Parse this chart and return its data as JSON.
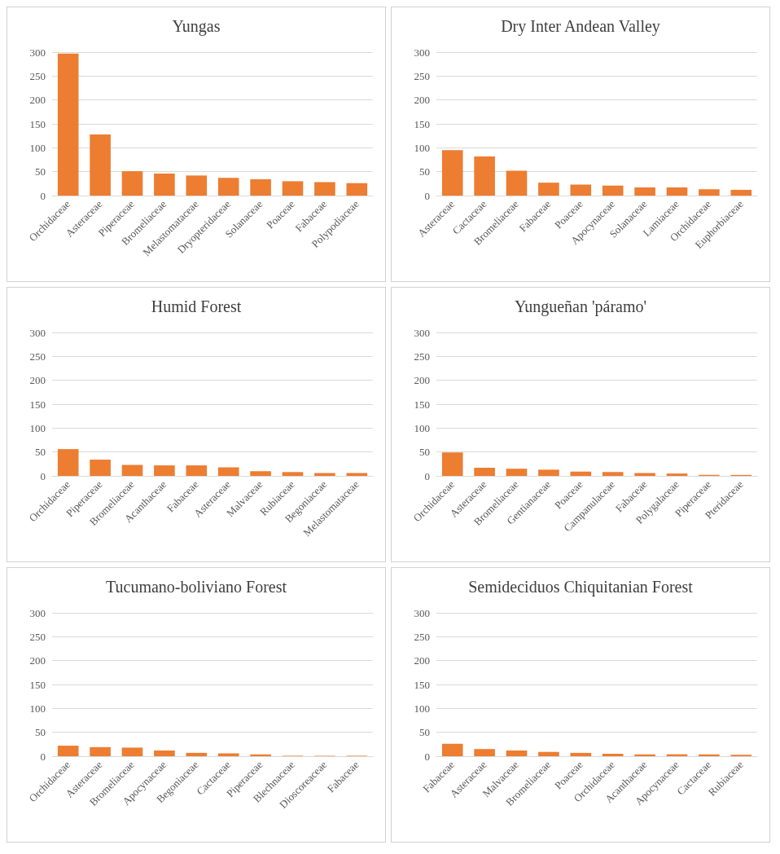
{
  "chart_data": [
    {
      "type": "bar",
      "title": "Yungas",
      "categories": [
        "Orchidaceae",
        "Asteraceae",
        "Piperaceae",
        "Bromeliaceae",
        "Melastomataceae",
        "Dryopteridaceae",
        "Solanaceae",
        "Poaceae",
        "Fabaceae",
        "Polypodiaceae"
      ],
      "values": [
        297,
        128,
        51,
        46,
        42,
        37,
        34,
        30,
        28,
        26
      ],
      "color": "#ed7d31",
      "ylim": [
        0,
        300
      ],
      "yticks": [
        0,
        50,
        100,
        150,
        200,
        250,
        300
      ],
      "grid": "y"
    },
    {
      "type": "bar",
      "title": "Dry Inter Andean Valley",
      "categories": [
        "Asteraceae",
        "Cactaceae",
        "Bromeliaceae",
        "Fabaceae",
        "Poaceae",
        "Apocynaceae",
        "Solanaceae",
        "Lamiaceae",
        "Orchidaceae",
        "Euphorbiaceae"
      ],
      "values": [
        95,
        82,
        52,
        27,
        23,
        21,
        17,
        17,
        13,
        12
      ],
      "color": "#ed7d31",
      "ylim": [
        0,
        300
      ],
      "yticks": [
        0,
        50,
        100,
        150,
        200,
        250,
        300
      ],
      "grid": "y"
    },
    {
      "type": "bar",
      "title": "Humid Forest",
      "categories": [
        "Orchidaceae",
        "Piperaceae",
        "Bromeliaceae",
        "Acanthaceae",
        "Fabaceae",
        "Asteraceae",
        "Malvaceae",
        "Rubiaceae",
        "Begoniaceae",
        "Melastomataceae"
      ],
      "values": [
        56,
        34,
        23,
        22,
        22,
        18,
        10,
        8,
        6,
        6
      ],
      "color": "#ed7d31",
      "ylim": [
        0,
        300
      ],
      "yticks": [
        0,
        50,
        100,
        150,
        200,
        250,
        300
      ],
      "grid": "y"
    },
    {
      "type": "bar",
      "title": "Yungueñan 'páramo'",
      "categories": [
        "Orchidaceae",
        "Asteraceae",
        "Bromeliaceae",
        "Gentianaceae",
        "Poaceae",
        "Campanulaceae",
        "Fabaceae",
        "Polygalaceae",
        "Piperaceae",
        "Pteridaceae"
      ],
      "values": [
        49,
        17,
        15,
        13,
        9,
        8,
        6,
        5,
        2,
        2
      ],
      "color": "#ed7d31",
      "ylim": [
        0,
        300
      ],
      "yticks": [
        0,
        50,
        100,
        150,
        200,
        250,
        300
      ],
      "grid": "y"
    },
    {
      "type": "bar",
      "title": "Tucumano-boliviano Forest",
      "categories": [
        "Orchidaceae",
        "Asteraceae",
        "Bromeliaceae",
        "Apocynaceae",
        "Begoniaceae",
        "Cactaceae",
        "Piperaceae",
        "Blechnaceae",
        "Dioscoreaceae",
        "Fabaceae"
      ],
      "values": [
        22,
        19,
        18,
        12,
        7,
        6,
        4,
        1,
        1,
        1
      ],
      "color": "#ed7d31",
      "ylim": [
        0,
        300
      ],
      "yticks": [
        0,
        50,
        100,
        150,
        200,
        250,
        300
      ],
      "grid": "y"
    },
    {
      "type": "bar",
      "title": "Semideciduos Chiquitanian Forest",
      "categories": [
        "Fabaceae",
        "Asteraceae",
        "Malvaceae",
        "Bromeliaceae",
        "Poaceae",
        "Orchidaceae",
        "Acanthaceae",
        "Apocynaceae",
        "Cactaceae",
        "Rubiaceae"
      ],
      "values": [
        26,
        15,
        12,
        9,
        7,
        5,
        4,
        4,
        4,
        3
      ],
      "color": "#ed7d31",
      "ylim": [
        0,
        300
      ],
      "yticks": [
        0,
        50,
        100,
        150,
        200,
        250,
        300
      ],
      "grid": "y"
    }
  ]
}
